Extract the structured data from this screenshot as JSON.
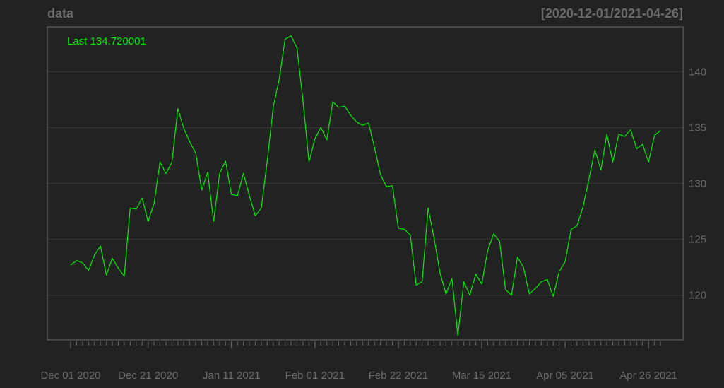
{
  "header": {
    "title": "data",
    "date_range": "[2020-12-01/2021-04-26]"
  },
  "annotation": {
    "last_label": "Last 134.720001"
  },
  "colors": {
    "background": "#222222",
    "panel_border": "#6a6a6a",
    "grid": "#3a3a3a",
    "line": "#00ee00",
    "text": "#6a6a6a"
  },
  "chart_data": {
    "type": "line",
    "title": "data",
    "subtitle": "[2020-12-01/2021-04-26]",
    "xlabel": "",
    "ylabel": "",
    "ylim": [
      116,
      144
    ],
    "y_axis_position": "right",
    "grid": true,
    "yticks": [
      120,
      125,
      130,
      135,
      140
    ],
    "x_tick_labels": [
      {
        "index": 0,
        "label": "Dec 01 2020"
      },
      {
        "index": 13,
        "label": "Dec 21 2020"
      },
      {
        "index": 27,
        "label": "Jan 11 2021"
      },
      {
        "index": 41,
        "label": "Feb 01 2021"
      },
      {
        "index": 55,
        "label": "Feb 22 2021"
      },
      {
        "index": 69,
        "label": "Mar 15 2021"
      },
      {
        "index": 83,
        "label": "Apr 05 2021"
      },
      {
        "index": 97,
        "label": "Apr 26 2021"
      }
    ],
    "series": [
      {
        "values": [
          122.7,
          123.1,
          122.9,
          122.2,
          123.6,
          124.4,
          121.8,
          123.3,
          122.4,
          121.7,
          127.8,
          127.7,
          128.7,
          126.6,
          128.2,
          131.9,
          130.9,
          131.9,
          136.7,
          134.9,
          133.7,
          132.7,
          129.4,
          131.0,
          126.6,
          130.9,
          132.0,
          129.0,
          128.9,
          130.9,
          128.9,
          127.1,
          127.8,
          132.0,
          136.8,
          139.3,
          142.9,
          143.2,
          142.1,
          137.4,
          131.9,
          134.0,
          135.0,
          133.9,
          137.3,
          136.8,
          136.9,
          136.1,
          135.5,
          135.2,
          135.4,
          133.2,
          130.8,
          129.7,
          129.8,
          126.0,
          125.9,
          125.4,
          120.9,
          121.2,
          127.8,
          125.1,
          122.0,
          120.1,
          121.5,
          116.4,
          121.2,
          120.0,
          121.9,
          121.0,
          124.0,
          125.5,
          124.8,
          120.5,
          120.0,
          123.4,
          122.5,
          120.1,
          120.6,
          121.2,
          121.4,
          119.9,
          122.1,
          123.0,
          125.9,
          126.2,
          127.9,
          130.4,
          133.0,
          131.2,
          134.4,
          131.9,
          134.4,
          134.2,
          134.8,
          133.1,
          133.5,
          131.9,
          134.3,
          134.72
        ]
      }
    ]
  }
}
